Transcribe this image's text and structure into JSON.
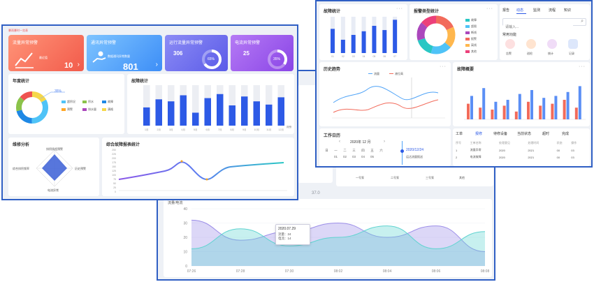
{
  "colors": {
    "blue": "#2d5ae6",
    "frame": "#2f5fc4",
    "cyan": "#29c7c4",
    "purple": "#8a57e8",
    "red": "#f26b5b"
  },
  "left": {
    "top_label": "暴雨暴时一览表",
    "cards": [
      {
        "title": "流量异常预警",
        "sub": "最近值",
        "value": "10",
        "icon": "trend-icon"
      },
      {
        "title": "通讯异常预警",
        "sub": "数据通讯异常数量",
        "value": "801",
        "icon": "hand-coin-icon"
      },
      {
        "title": "运行流量异常预警",
        "value": "306",
        "pct": "65%"
      },
      {
        "title": "电流异常预警",
        "value": "25",
        "pct": "35%"
      }
    ],
    "year_title": "年度统计",
    "year_pct": "35%",
    "year_legend": [
      "超积况",
      "积水",
      "故障",
      "预警",
      "排水量",
      "满格"
    ],
    "fault_title": "故障统计",
    "fault_chart": {
      "type": "bar",
      "categories": [
        "1月",
        "2月",
        "3月",
        "4月",
        "5月",
        "6月",
        "7月",
        "8月",
        "9月",
        "10月",
        "11月",
        "12月"
      ],
      "values": [
        45,
        65,
        60,
        75,
        32,
        68,
        78,
        50,
        72,
        60,
        52,
        70
      ],
      "ylim": [
        0,
        100
      ]
    },
    "fault_x_label": "月份",
    "radar_title": "维修分析",
    "radar_labels": [
      "排积扬程预警",
      "历史预警",
      "电流异常",
      "综合排积频率"
    ],
    "overall_title": "综合故障报表统计",
    "overall_y": [
      "250",
      "225",
      "200",
      "175",
      "150",
      "125",
      "100",
      "75",
      "50",
      "25",
      "0"
    ]
  },
  "right": {
    "panel1_title": "故障统计",
    "bars1": {
      "type": "bar",
      "categories": [
        "01",
        "02",
        "03",
        "04",
        "05",
        "06",
        "07"
      ],
      "values": [
        40,
        22,
        30,
        36,
        45,
        38,
        55
      ],
      "ylim": [
        0,
        60
      ]
    },
    "panel2_title": "报警类型统计",
    "donut_legend": [
      "故障",
      "超限",
      "断线",
      "报警",
      "离线",
      "其他"
    ],
    "tabs": [
      "报告",
      "动态",
      "监测",
      "流程",
      "知识"
    ],
    "search_placeholder": "请输入...",
    "quick_title": "常用功能",
    "quick_items": [
      "告警",
      "巡检",
      "统计",
      "记录"
    ],
    "history_title": "历史趋势",
    "history_legend": [
      "流量",
      "液位高"
    ],
    "history_x": [
      "08:00",
      "10:00",
      "12:00",
      "14:00",
      "16:00",
      "18:00",
      "20:00",
      "22:00",
      "24:00",
      "02:00",
      "04:00",
      "06:00"
    ],
    "fault_rate_title": "故障概要",
    "fault_rate_chart": {
      "type": "bar",
      "categories": [
        "1",
        "2",
        "3",
        "4",
        "5",
        "6",
        "7",
        "8",
        "9",
        "10"
      ],
      "series": [
        {
          "name": "",
          "values": [
            40,
            30,
            25,
            35,
            20,
            45,
            35,
            40,
            50,
            30
          ]
        },
        {
          "name": "",
          "values": [
            60,
            80,
            45,
            50,
            65,
            75,
            55,
            60,
            70,
            85
          ]
        }
      ],
      "ylim": [
        0,
        100
      ]
    },
    "calendar_title": "工作日历",
    "calendar_month": "2020年 12 月",
    "calendar_weekdays": [
      "日",
      "一",
      "二",
      "三",
      "四",
      "五",
      "六"
    ],
    "calendar_row": [
      "01",
      "02",
      "03",
      "04",
      "05"
    ],
    "timeline_date": "2020/12/24",
    "timeline_text": "运达流量报送",
    "table_tabs": [
      "工单",
      "报修",
      "待修设备",
      "当前状态",
      "超时",
      "完成"
    ],
    "table_headers": [
      "序号",
      "工单名称",
      "处理意见",
      "处理时间",
      "状态",
      "操作"
    ],
    "table_rows": [
      [
        "1",
        "流量异常",
        "2020",
        "2021",
        "00",
        "03"
      ],
      [
        "2",
        "电流故障",
        "2020",
        "2021",
        "00",
        "03"
      ]
    ]
  },
  "middle": {
    "labels": [
      "一号泵",
      "二号泵",
      "三号泵",
      "其他"
    ],
    "value_label": "37.0"
  },
  "bottom": {
    "legend": "流量/电流",
    "y_ticks": [
      "40",
      "30",
      "20",
      "10",
      "0"
    ],
    "x_ticks": [
      "07:26",
      "07:28",
      "07:30",
      "08:02",
      "08:04",
      "08:06",
      "08:08"
    ],
    "tooltip": {
      "date": "2020.07.29",
      "row1": "流量：24",
      "row2": "电流：14"
    },
    "chart_data": {
      "type": "area",
      "x": [
        "07:26",
        "07:28",
        "07:30",
        "08:02",
        "08:04",
        "08:06",
        "08:08"
      ],
      "series": [
        {
          "name": "流量",
          "values": [
            32,
            18,
            24,
            30,
            20,
            28,
            10
          ]
        },
        {
          "name": "电流",
          "values": [
            12,
            26,
            14,
            20,
            28,
            12,
            24
          ]
        }
      ],
      "ylim": [
        0,
        40
      ]
    }
  }
}
